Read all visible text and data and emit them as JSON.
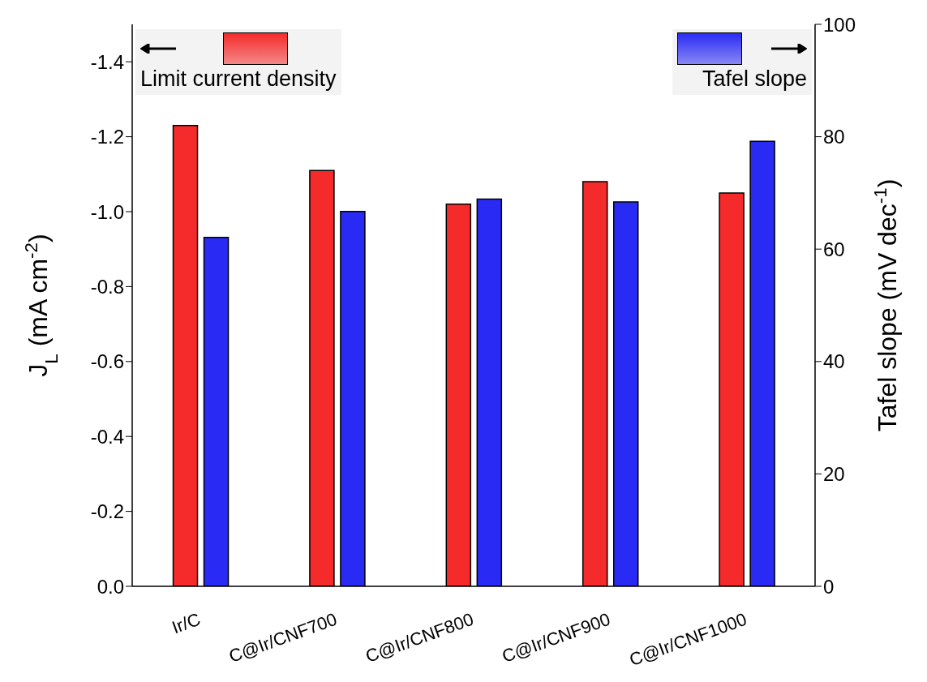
{
  "chart_data": {
    "type": "bar",
    "ylabel": "J$_{L}$ (mA cm$^{-2}$)",
    "y2label": "Tafel slope (mV dec$^{-1}$)",
    "categories": [
      "Ir/C",
      "C@Ir/CNF700",
      "C@Ir/CNF800",
      "C@Ir/CNF900",
      "C@Ir/CNF1000"
    ],
    "series": [
      {
        "name": "Limit current density",
        "color": "#f52a2a",
        "values": [
          -1.23,
          -1.11,
          -1.02,
          -1.08,
          -1.05
        ],
        "axis": "y"
      },
      {
        "name": "Tafel slope",
        "color": "#2a2af5",
        "values": [
          62.1,
          66.7,
          68.9,
          68.4,
          79.2
        ],
        "axis": "y2"
      }
    ],
    "ylim": [
      0,
      -1.5
    ],
    "yticks": [
      {
        "value": 0,
        "label": "0.0"
      },
      {
        "value": -0.2,
        "label": "-0.2"
      },
      {
        "value": -0.4,
        "label": "-0.4"
      },
      {
        "value": -0.6,
        "label": "-0.6"
      },
      {
        "value": -0.8,
        "label": "-0.8"
      },
      {
        "value": -1,
        "label": "-1.0"
      },
      {
        "value": -1.2,
        "label": "-1.2"
      },
      {
        "value": -1.4,
        "label": "-1.4"
      }
    ],
    "y2lim": [
      0,
      100
    ],
    "y2ticks": [
      0,
      20,
      40,
      60,
      80,
      100
    ],
    "grid": false,
    "legend": "top"
  }
}
